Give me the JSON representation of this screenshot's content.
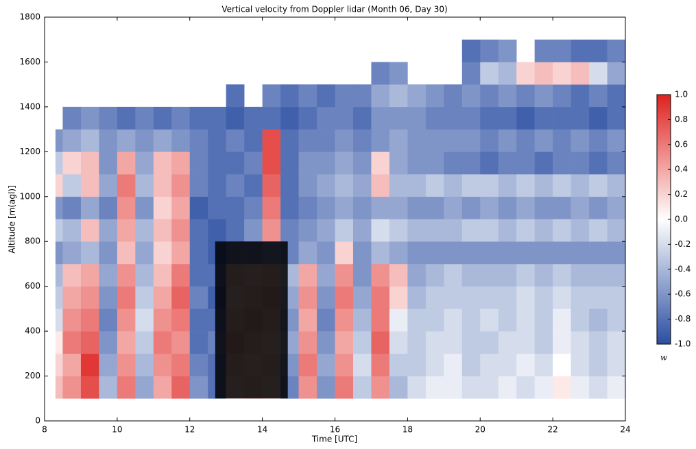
{
  "chart_data": {
    "type": "heatmap",
    "title": "Vertical velocity from Doppler lidar (Month 06, Day 30)",
    "x_label": "Time [UTC]",
    "y_label": "Altitude [m(agl)]",
    "xbins": [
      8.0,
      8.5,
      9.0,
      9.5,
      10.0,
      10.5,
      11.0,
      11.5,
      12.0,
      12.5,
      13.0,
      13.5,
      14.0,
      14.5,
      15.0,
      15.5,
      16.0,
      16.5,
      17.0,
      17.5,
      18.0,
      18.5,
      19.0,
      19.5,
      20.0,
      20.5,
      21.0,
      21.5,
      22.0,
      22.5,
      23.0,
      23.5,
      24.0
    ],
    "ybins": [
      100,
      200,
      300,
      400,
      500,
      600,
      700,
      800,
      900,
      1000,
      1100,
      1200,
      1300,
      1400,
      1500,
      1600,
      1700
    ],
    "z": [
      [
        0.3,
        0.5,
        0.8,
        -0.4,
        0.6,
        -0.5,
        0.4,
        0.7,
        -0.6,
        -0.8,
        0.2,
        0.3,
        0.2,
        -0.7,
        0.5,
        -0.6,
        0.6,
        -0.3,
        0.5,
        -0.4,
        -0.2,
        -0.1,
        -0.1,
        -0.2,
        -0.2,
        -0.1,
        -0.2,
        -0.1,
        0.1,
        -0.1,
        -0.2,
        -0.1
      ],
      [
        0.2,
        0.4,
        0.9,
        -0.5,
        0.5,
        -0.4,
        0.5,
        0.6,
        -0.7,
        -0.8,
        0.3,
        0.2,
        0.3,
        -0.6,
        0.6,
        -0.5,
        0.5,
        -0.2,
        0.6,
        -0.3,
        -0.3,
        -0.2,
        -0.1,
        -0.3,
        -0.2,
        -0.2,
        -0.1,
        -0.2,
        0.0,
        -0.2,
        -0.3,
        -0.2
      ],
      [
        0.1,
        0.6,
        0.7,
        -0.6,
        0.4,
        -0.3,
        0.6,
        0.5,
        -0.8,
        -0.7,
        0.4,
        0.3,
        0.2,
        -0.5,
        0.5,
        -0.6,
        0.4,
        -0.3,
        0.7,
        -0.2,
        -0.3,
        -0.2,
        -0.2,
        -0.3,
        -0.3,
        -0.2,
        -0.2,
        -0.3,
        -0.1,
        -0.2,
        -0.3,
        -0.2
      ],
      [
        -0.2,
        0.5,
        0.6,
        -0.7,
        0.5,
        -0.2,
        0.5,
        0.6,
        -0.8,
        -0.8,
        0.3,
        0.4,
        0.3,
        -0.6,
        0.4,
        -0.7,
        0.5,
        -0.4,
        0.6,
        -0.1,
        -0.3,
        -0.3,
        -0.2,
        -0.3,
        -0.2,
        -0.3,
        -0.2,
        -0.3,
        -0.1,
        -0.3,
        -0.4,
        -0.3
      ],
      [
        -0.3,
        0.4,
        0.5,
        -0.6,
        0.6,
        -0.3,
        0.4,
        0.7,
        -0.7,
        -0.9,
        0.2,
        0.3,
        0.4,
        -0.5,
        0.5,
        -0.6,
        0.6,
        -0.5,
        0.6,
        0.2,
        -0.4,
        -0.3,
        -0.3,
        -0.3,
        -0.3,
        -0.3,
        -0.2,
        -0.3,
        -0.2,
        -0.3,
        -0.3,
        -0.3
      ],
      [
        -0.4,
        0.3,
        0.4,
        -0.5,
        0.5,
        -0.4,
        0.3,
        0.6,
        -0.8,
        -0.8,
        0.3,
        0.2,
        0.3,
        -0.4,
        0.4,
        -0.5,
        0.5,
        -0.6,
        0.5,
        0.3,
        -0.5,
        -0.4,
        -0.3,
        -0.4,
        -0.4,
        -0.4,
        -0.3,
        -0.4,
        -0.3,
        -0.4,
        -0.4,
        -0.4
      ],
      [
        -0.6,
        -0.5,
        -0.4,
        -0.6,
        0.3,
        -0.5,
        0.2,
        0.4,
        -0.8,
        -0.9,
        -0.7,
        -0.7,
        -0.6,
        -0.7,
        -0.5,
        -0.6,
        0.2,
        -0.6,
        -0.4,
        -0.5,
        -0.6,
        -0.6,
        -0.6,
        -0.6,
        -0.6,
        -0.6,
        -0.6,
        -0.6,
        -0.6,
        -0.6,
        -0.6,
        -0.6
      ],
      [
        -0.3,
        -0.4,
        0.3,
        -0.5,
        0.4,
        -0.4,
        0.3,
        0.5,
        -0.8,
        -0.9,
        -0.8,
        -0.6,
        0.5,
        -0.7,
        -0.6,
        -0.5,
        -0.3,
        -0.5,
        -0.2,
        -0.3,
        -0.4,
        -0.4,
        -0.4,
        -0.3,
        -0.3,
        -0.4,
        -0.3,
        -0.4,
        -0.3,
        -0.4,
        -0.3,
        -0.4
      ],
      [
        -0.6,
        -0.7,
        -0.5,
        -0.7,
        0.5,
        -0.6,
        0.2,
        0.4,
        -0.9,
        -0.8,
        -0.8,
        -0.7,
        0.6,
        -0.8,
        -0.7,
        -0.6,
        -0.5,
        -0.6,
        -0.5,
        -0.5,
        -0.6,
        -0.6,
        -0.5,
        -0.6,
        -0.5,
        -0.6,
        -0.5,
        -0.6,
        -0.6,
        -0.5,
        -0.6,
        -0.5
      ],
      [
        0.2,
        -0.3,
        0.3,
        -0.5,
        0.6,
        -0.4,
        0.3,
        0.5,
        -0.7,
        -0.8,
        -0.7,
        -0.8,
        0.7,
        -0.8,
        -0.6,
        -0.5,
        -0.4,
        -0.5,
        0.3,
        -0.4,
        -0.4,
        -0.3,
        -0.4,
        -0.3,
        -0.3,
        -0.4,
        -0.3,
        -0.4,
        -0.3,
        -0.4,
        -0.3,
        -0.4
      ],
      [
        -0.3,
        0.2,
        0.3,
        -0.6,
        0.4,
        -0.5,
        0.3,
        0.4,
        -0.7,
        -0.8,
        -0.8,
        -0.7,
        0.8,
        -0.8,
        -0.6,
        -0.6,
        -0.5,
        -0.6,
        0.2,
        -0.5,
        -0.6,
        -0.6,
        -0.7,
        -0.7,
        -0.8,
        -0.7,
        -0.7,
        -0.8,
        -0.7,
        -0.7,
        -0.8,
        -0.7
      ],
      [
        -0.6,
        -0.5,
        -0.4,
        -0.6,
        -0.5,
        -0.6,
        -0.5,
        -0.6,
        -0.7,
        -0.8,
        -0.7,
        -0.8,
        0.8,
        -0.8,
        -0.7,
        -0.7,
        -0.6,
        -0.7,
        -0.6,
        -0.5,
        -0.6,
        -0.6,
        -0.6,
        -0.6,
        -0.7,
        -0.6,
        -0.7,
        -0.6,
        -0.7,
        -0.6,
        -0.7,
        -0.6
      ],
      [
        null,
        -0.7,
        -0.6,
        -0.7,
        -0.8,
        -0.7,
        -0.8,
        -0.7,
        -0.8,
        -0.8,
        -0.9,
        -0.8,
        -0.8,
        -0.9,
        -0.8,
        -0.7,
        -0.7,
        -0.8,
        -0.6,
        -0.6,
        -0.6,
        -0.7,
        -0.7,
        -0.7,
        -0.8,
        -0.8,
        -0.9,
        -0.8,
        -0.8,
        -0.8,
        -0.9,
        -0.8
      ],
      [
        null,
        null,
        null,
        null,
        null,
        null,
        null,
        null,
        null,
        null,
        -0.8,
        null,
        -0.7,
        -0.8,
        -0.7,
        -0.8,
        -0.7,
        -0.7,
        -0.5,
        -0.4,
        -0.5,
        -0.6,
        -0.7,
        -0.6,
        -0.7,
        -0.6,
        -0.7,
        -0.6,
        -0.7,
        -0.8,
        -0.7,
        -0.8
      ],
      [
        null,
        null,
        null,
        null,
        null,
        null,
        null,
        null,
        null,
        null,
        null,
        null,
        null,
        null,
        null,
        null,
        null,
        null,
        -0.7,
        -0.6,
        null,
        null,
        null,
        -0.7,
        -0.3,
        -0.4,
        0.2,
        0.3,
        0.2,
        0.3,
        -0.2,
        -0.5
      ],
      [
        null,
        null,
        null,
        null,
        null,
        null,
        null,
        null,
        null,
        null,
        null,
        null,
        null,
        null,
        null,
        null,
        null,
        null,
        null,
        null,
        null,
        null,
        null,
        -0.8,
        -0.7,
        -0.6,
        null,
        -0.7,
        -0.7,
        -0.8,
        -0.8,
        -0.7
      ]
    ],
    "xlim": [
      8,
      24
    ],
    "xticks": [
      8,
      10,
      12,
      14,
      16,
      18,
      20,
      22,
      24
    ],
    "ylim": [
      0,
      1800
    ],
    "yticks": [
      0,
      200,
      400,
      600,
      800,
      1000,
      1200,
      1400,
      1600,
      1800
    ],
    "colorbar": {
      "label": "w",
      "lim": [
        -1,
        1
      ],
      "colors": [
        "#2b4ea2",
        "#ffffff",
        "#de221e"
      ],
      "ticks": [
        {
          "value": 1,
          "label": "1.0"
        },
        {
          "value": 0.8,
          "label": "0.8"
        },
        {
          "value": 0.6,
          "label": "0.6"
        },
        {
          "value": 0.4,
          "label": "0.4"
        },
        {
          "value": 0.2,
          "label": "0.2"
        },
        {
          "value": 0,
          "label": "0.0"
        },
        {
          "value": -0.2,
          "label": "-0.2"
        },
        {
          "value": -0.4,
          "label": "-0.4"
        },
        {
          "value": -0.6,
          "label": "-0.6"
        },
        {
          "value": -0.8,
          "label": "-0.8"
        },
        {
          "value": -1,
          "label": "-1.0"
        }
      ]
    },
    "highlight": {
      "xlim": [
        12.7,
        14.7
      ],
      "ylim": [
        100,
        800
      ],
      "color": "#000000"
    }
  }
}
